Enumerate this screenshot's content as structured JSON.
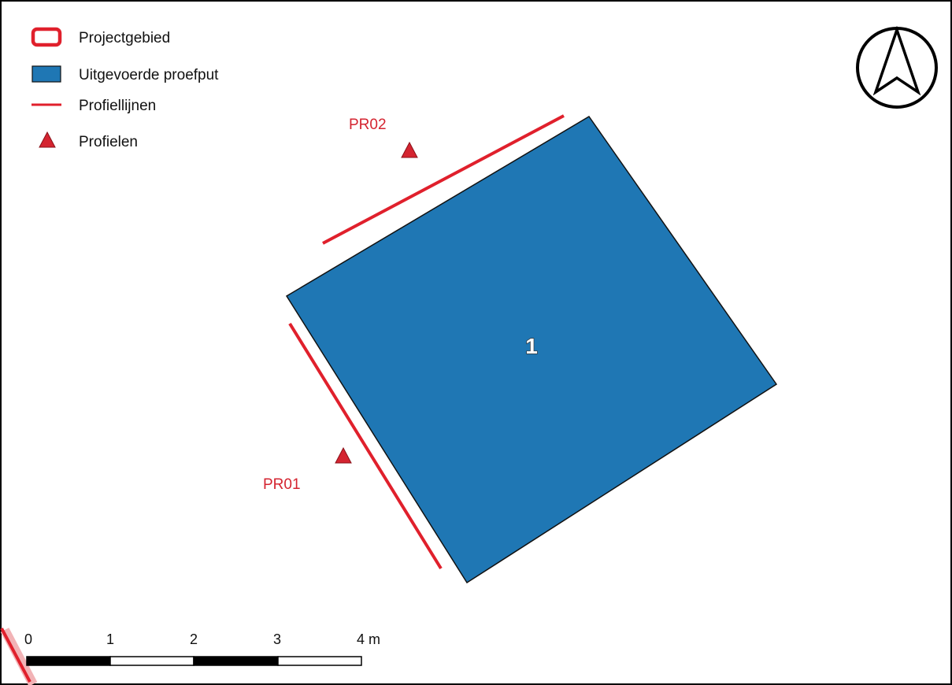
{
  "legend": {
    "items": [
      {
        "label": "Projectgebied",
        "symbol": "outline-rect",
        "color": "#e0202c"
      },
      {
        "label": "Uitgevoerde proefput",
        "symbol": "filled-rect",
        "color": "#1f77b4"
      },
      {
        "label": "Profiellijnen",
        "symbol": "line",
        "color": "#e0202c"
      },
      {
        "label": "Profielen",
        "symbol": "triangle",
        "color": "#d42430"
      }
    ]
  },
  "features": {
    "pit": {
      "label": "1",
      "color": "#1f77b4"
    },
    "profiles": [
      {
        "label": "PR02"
      },
      {
        "label": "PR01"
      }
    ]
  },
  "north_arrow": {
    "icon": "north-arrow-icon"
  },
  "scale_bar": {
    "ticks": [
      "0",
      "1",
      "2",
      "3",
      "4 m"
    ]
  }
}
